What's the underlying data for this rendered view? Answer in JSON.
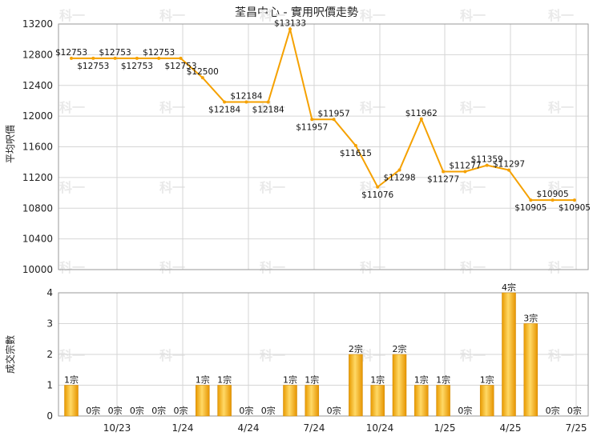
{
  "chart_data": [
    {
      "type": "line",
      "title": "荃昌中心 - 實用呎價走勢",
      "ylabel": "平均呎價",
      "ylim": [
        10000,
        13200
      ],
      "yticks": [
        10000,
        10400,
        10800,
        11200,
        11600,
        12000,
        12400,
        12800,
        13200
      ],
      "x_tick_labels": [
        "10/23",
        "1/24",
        "4/24",
        "7/24",
        "10/24",
        "1/25",
        "4/25",
        "7/25"
      ],
      "series": [
        {
          "values": [
            12753,
            12753,
            12753,
            12753,
            12753,
            12753,
            12500,
            12184,
            12184,
            12184,
            13133,
            11957,
            11957,
            11615,
            11076,
            11298,
            11962,
            11277,
            11277,
            11359,
            11297,
            10905,
            10905,
            10905
          ],
          "labels": [
            "$12753",
            "$12753",
            "$12753",
            "$12753",
            "$12753",
            "$12753",
            "$12500",
            "$12184",
            "$12184",
            "$12184",
            "$13133",
            "$11957",
            "$11957",
            "$11615",
            "$11076",
            "$11298",
            "$11962",
            "$11277",
            "$11277",
            "$11359",
            "$11297",
            "$10905",
            "$10905",
            "$10905"
          ],
          "color": "#f5a100"
        }
      ],
      "grid": true
    },
    {
      "type": "bar",
      "ylabel": "成交宗數",
      "ylim": [
        0,
        4
      ],
      "yticks": [
        0,
        1,
        2,
        3,
        4
      ],
      "x_tick_labels": [
        "10/23",
        "1/24",
        "4/24",
        "7/24",
        "10/24",
        "1/25",
        "4/25",
        "7/25"
      ],
      "values": [
        1,
        0,
        0,
        0,
        0,
        0,
        1,
        1,
        0,
        0,
        1,
        1,
        0,
        2,
        1,
        2,
        1,
        1,
        0,
        1,
        4,
        3,
        0,
        0
      ],
      "labels": [
        "1宗",
        "0宗",
        "0宗",
        "0宗",
        "0宗",
        "0宗",
        "1宗",
        "1宗",
        "0宗",
        "0宗",
        "1宗",
        "1宗",
        "0宗",
        "2宗",
        "1宗",
        "2宗",
        "1宗",
        "1宗",
        "0宗",
        "1宗",
        "4宗",
        "3宗",
        "0宗",
        "0宗"
      ],
      "color": "#f5b21a",
      "grid": true
    }
  ],
  "watermark_text": "科一"
}
